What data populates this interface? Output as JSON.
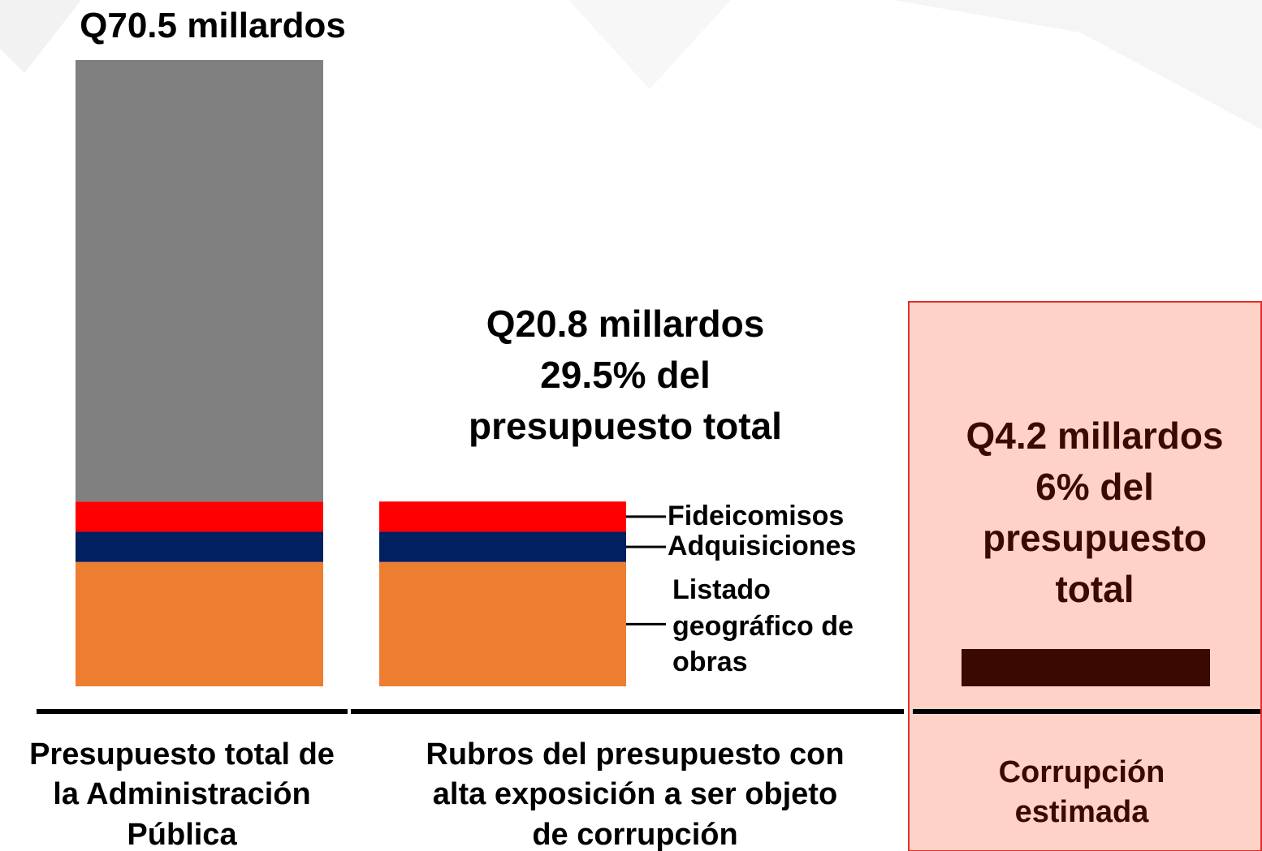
{
  "chart_data": {
    "type": "bar",
    "stacked": true,
    "categories": [
      "Presupuesto total de\nla Administración\nPública",
      "Rubros del presupuesto con\nalta exposición a ser objeto\nde corrupción",
      "Corrupción\nestimada"
    ],
    "series": [
      {
        "name": "Listado geográfico de obras",
        "color": "#ed7d31",
        "values": [
          14.0,
          14.0,
          null
        ]
      },
      {
        "name": "Adquisiciones",
        "color": "#002060",
        "values": [
          3.4,
          3.4,
          null
        ]
      },
      {
        "name": "Fideicomisos",
        "color": "#ff0000",
        "values": [
          3.4,
          3.4,
          null
        ]
      },
      {
        "color": "#808080",
        "values": [
          49.7,
          null,
          null
        ]
      },
      {
        "color": "#3a0a00",
        "values": [
          null,
          null,
          4.2
        ]
      }
    ],
    "annotations": [
      "Q70.5 millardos",
      "Q20.8 millardos\n29.5% del\npresupuesto total",
      "Q4.2 millardos\n6% del\npresupuesto\ntotal"
    ],
    "ylim": [
      0,
      70.5
    ]
  }
}
